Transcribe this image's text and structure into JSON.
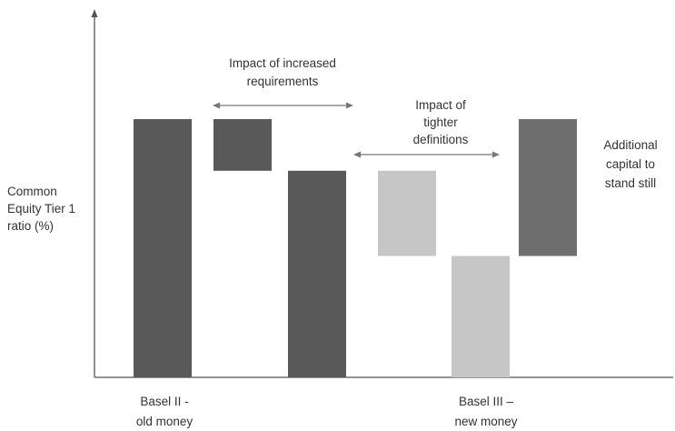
{
  "chart_data": {
    "type": "bar",
    "subtype": "waterfall",
    "ylabel": [
      "Common",
      "Equity Tier 1",
      "ratio (%)"
    ],
    "x_labels": [
      {
        "lines": [
          "Basel II -",
          "old money"
        ]
      },
      {
        "lines": [
          "Basel III –",
          "new money"
        ]
      }
    ],
    "bars": [
      {
        "name": "basel-ii-old-money",
        "bottom": 0,
        "top": 100,
        "color": "#595959"
      },
      {
        "name": "increased-requirements-step",
        "bottom": 80,
        "top": 100,
        "color": "#595959"
      },
      {
        "name": "after-increased-requirements",
        "bottom": 0,
        "top": 80,
        "color": "#595959"
      },
      {
        "name": "tighter-definitions-step",
        "bottom": 47,
        "top": 80,
        "color": "#c6c6c6"
      },
      {
        "name": "basel-iii-new-money",
        "bottom": 0,
        "top": 47,
        "color": "#c6c6c6"
      },
      {
        "name": "additional-capital-step",
        "bottom": 47,
        "top": 100,
        "color": "#6e6e6e"
      }
    ],
    "annotations": [
      {
        "name": "impact-increased-requirements",
        "lines": [
          "Impact of increased",
          "requirements"
        ]
      },
      {
        "name": "impact-tighter-definitions",
        "lines": [
          "Impact of",
          "tighter",
          "definitions"
        ]
      },
      {
        "name": "additional-capital",
        "lines": [
          "Additional",
          "capital to",
          "stand still"
        ]
      }
    ],
    "ylim": [
      0,
      100
    ],
    "grid": false,
    "legend": "none"
  }
}
